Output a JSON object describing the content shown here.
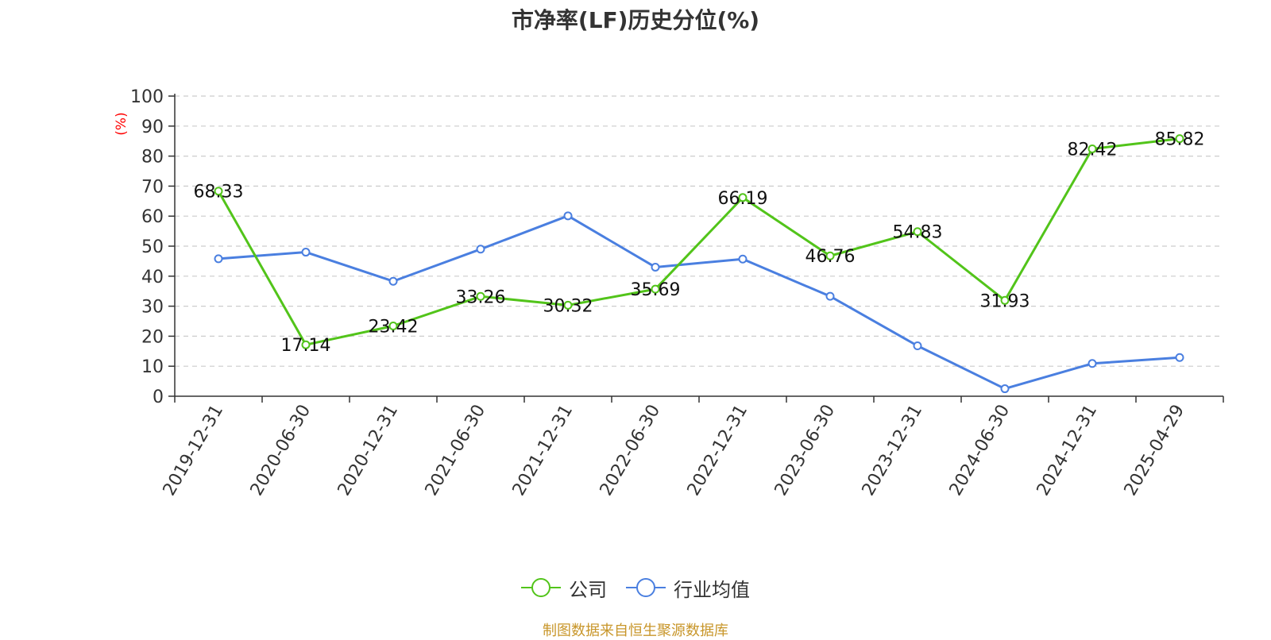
{
  "chart_data": {
    "type": "line",
    "title": "市净率(LF)历史分位(%)",
    "ylabel": "(%)",
    "xlabel": "",
    "ylim": [
      0,
      100
    ],
    "yticks": [
      0,
      10,
      20,
      30,
      40,
      50,
      60,
      70,
      80,
      90,
      100
    ],
    "grid": true,
    "legend_position": "bottom",
    "categories": [
      "2019-12-31",
      "2020-06-30",
      "2020-12-31",
      "2021-06-30",
      "2021-12-31",
      "2022-06-30",
      "2022-12-31",
      "2023-06-30",
      "2023-12-31",
      "2024-06-30",
      "2024-12-31",
      "2025-04-29"
    ],
    "series": [
      {
        "name": "公司",
        "color": "#52c41a",
        "values": [
          68.33,
          17.14,
          23.42,
          33.26,
          30.32,
          35.69,
          66.19,
          46.76,
          54.83,
          31.93,
          82.42,
          85.82
        ],
        "show_labels": true
      },
      {
        "name": "行业均值",
        "color": "#4a7fe0",
        "values": [
          45.8,
          48.0,
          38.3,
          49.0,
          60.1,
          43.0,
          45.7,
          33.3,
          16.8,
          2.5,
          10.9,
          12.9
        ],
        "show_labels": false
      }
    ],
    "source_note": "制图数据来自恒生聚源数据库"
  },
  "colors": {
    "axis": "#333333",
    "grid": "#cccccc",
    "ylabel": "#ff0000",
    "source": "#c8962a"
  }
}
